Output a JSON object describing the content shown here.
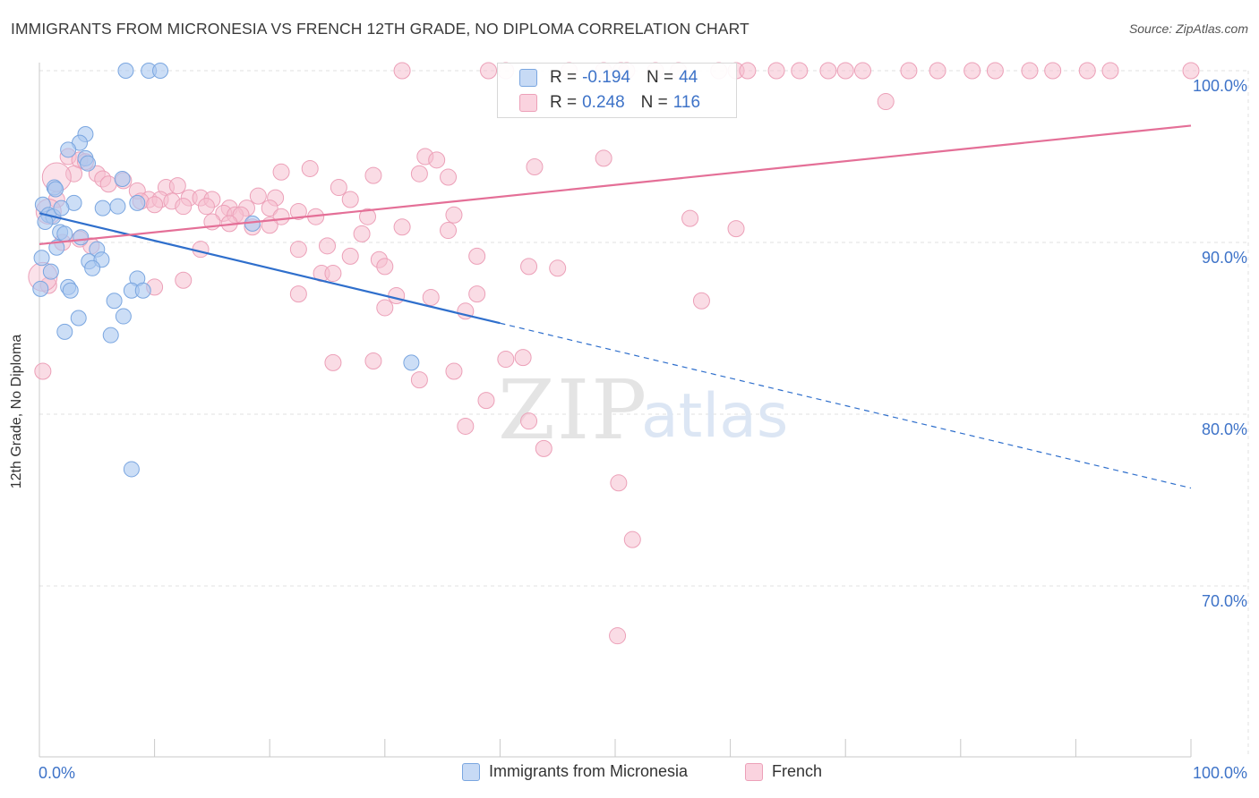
{
  "title": "IMMIGRANTS FROM MICRONESIA VS FRENCH 12TH GRADE, NO DIPLOMA CORRELATION CHART",
  "source": "Source: ZipAtlas.com",
  "watermark": {
    "zip": "ZIP",
    "atlas": "atlas"
  },
  "colors": {
    "blue_fill": "#aac8f0",
    "blue_stroke": "#7aa6e0",
    "blue_line": "#2f6fcc",
    "pink_fill": "#f6bfd0",
    "pink_stroke": "#eca0b8",
    "pink_line": "#e46f97",
    "axis_text": "#3e73c8",
    "grid": "#e0e0e0"
  },
  "legend": {
    "rows": [
      {
        "r_label": "R =",
        "r_value": "-0.194",
        "n_label": "N =",
        "n_value": "44"
      },
      {
        "r_label": "R =",
        "r_value": "0.248",
        "n_label": "N =",
        "n_value": "116"
      }
    ]
  },
  "chart_data": {
    "type": "scatter",
    "title": "IMMIGRANTS FROM MICRONESIA VS FRENCH 12TH GRADE, NO DIPLOMA CORRELATION CHART",
    "xlabel": "",
    "ylabel": "12th Grade, No Diploma",
    "xlim": [
      0,
      100
    ],
    "ylim": [
      60,
      100
    ],
    "x_tick_labels": [
      "0.0%",
      "100.0%"
    ],
    "y_ticks": [
      70,
      80,
      90,
      100
    ],
    "y_tick_labels": [
      "70.0%",
      "80.0%",
      "90.0%",
      "100.0%"
    ],
    "grid": true,
    "legend_position": "top-center",
    "series": [
      {
        "name": "Immigrants from Micronesia",
        "r": -0.194,
        "n": 44,
        "trend": {
          "x0": 0,
          "y0": 91.7,
          "x1": 40,
          "y1": 85.3,
          "dash_to_x": 100,
          "dash_to_y": 75.7
        },
        "points": [
          [
            7.5,
            100
          ],
          [
            9.5,
            100
          ],
          [
            10.5,
            100
          ],
          [
            4,
            96.3
          ],
          [
            3.5,
            95.8
          ],
          [
            2.5,
            95.4
          ],
          [
            4,
            94.9
          ],
          [
            4.2,
            94.6
          ],
          [
            7.2,
            93.7
          ],
          [
            1.3,
            93.2
          ],
          [
            1.4,
            93.1
          ],
          [
            0.3,
            92.2
          ],
          [
            3,
            92.3
          ],
          [
            5.5,
            92
          ],
          [
            6.8,
            92.1
          ],
          [
            8.5,
            92.3
          ],
          [
            0.8,
            91.6
          ],
          [
            1.2,
            91.5
          ],
          [
            1.9,
            92
          ],
          [
            0.5,
            91.2
          ],
          [
            1.8,
            90.6
          ],
          [
            2.2,
            90.5
          ],
          [
            3.6,
            90.3
          ],
          [
            1.5,
            89.7
          ],
          [
            5,
            89.6
          ],
          [
            18.5,
            91.1
          ],
          [
            0.2,
            89.1
          ],
          [
            4.3,
            88.9
          ],
          [
            5.4,
            89
          ],
          [
            4.6,
            88.5
          ],
          [
            8.5,
            87.9
          ],
          [
            2.5,
            87.4
          ],
          [
            2.7,
            87.2
          ],
          [
            8,
            87.2
          ],
          [
            9,
            87.2
          ],
          [
            6.5,
            86.6
          ],
          [
            7.3,
            85.7
          ],
          [
            3.4,
            85.6
          ],
          [
            2.2,
            84.8
          ],
          [
            6.2,
            84.6
          ],
          [
            32.3,
            83
          ],
          [
            8,
            76.8
          ],
          [
            0.1,
            87.3
          ],
          [
            1.0,
            88.3
          ]
        ]
      },
      {
        "name": "French",
        "r": 0.248,
        "n": 116,
        "trend": {
          "x0": 0,
          "y0": 89.9,
          "x1": 100,
          "y1": 96.8
        },
        "points": [
          [
            31.5,
            100
          ],
          [
            39,
            100
          ],
          [
            40.5,
            100
          ],
          [
            46,
            100
          ],
          [
            49,
            100
          ],
          [
            50.5,
            100
          ],
          [
            51,
            100
          ],
          [
            53.5,
            100
          ],
          [
            55.5,
            100
          ],
          [
            59,
            100
          ],
          [
            60.5,
            100
          ],
          [
            61.5,
            100
          ],
          [
            64,
            100
          ],
          [
            66,
            100
          ],
          [
            68.5,
            100
          ],
          [
            70,
            100
          ],
          [
            71.5,
            100
          ],
          [
            75.5,
            100
          ],
          [
            78,
            100
          ],
          [
            81,
            100
          ],
          [
            83,
            100
          ],
          [
            86,
            100
          ],
          [
            88,
            100
          ],
          [
            91,
            100
          ],
          [
            93,
            100
          ],
          [
            100,
            100
          ],
          [
            73.5,
            98.2
          ],
          [
            2.5,
            95
          ],
          [
            3.5,
            94.8
          ],
          [
            4,
            94.7
          ],
          [
            33.5,
            95
          ],
          [
            34.5,
            94.8
          ],
          [
            49,
            94.9
          ],
          [
            43,
            94.4
          ],
          [
            23.5,
            94.3
          ],
          [
            21,
            94.1
          ],
          [
            5,
            94
          ],
          [
            33,
            94
          ],
          [
            29,
            93.9
          ],
          [
            35.5,
            93.8
          ],
          [
            5.5,
            93.7
          ],
          [
            6,
            93.4
          ],
          [
            7.3,
            93.6
          ],
          [
            8.5,
            93
          ],
          [
            11,
            93.2
          ],
          [
            12,
            93.3
          ],
          [
            26,
            93.2
          ],
          [
            9.5,
            92.5
          ],
          [
            10.5,
            92.5
          ],
          [
            11.5,
            92.4
          ],
          [
            13,
            92.6
          ],
          [
            14,
            92.6
          ],
          [
            15,
            92.5
          ],
          [
            19,
            92.7
          ],
          [
            20.5,
            92.6
          ],
          [
            27,
            92.5
          ],
          [
            8.8,
            92.4
          ],
          [
            10,
            92.2
          ],
          [
            12.5,
            92.1
          ],
          [
            14.5,
            92.1
          ],
          [
            16.5,
            92
          ],
          [
            18,
            92
          ],
          [
            20,
            92
          ],
          [
            22.5,
            91.8
          ],
          [
            16,
            91.7
          ],
          [
            17,
            91.6
          ],
          [
            17.5,
            91.6
          ],
          [
            21,
            91.5
          ],
          [
            24,
            91.5
          ],
          [
            28.5,
            91.5
          ],
          [
            36,
            91.6
          ],
          [
            56.5,
            91.4
          ],
          [
            15,
            91.2
          ],
          [
            16.5,
            91.1
          ],
          [
            18.5,
            90.9
          ],
          [
            20,
            91
          ],
          [
            31.5,
            90.9
          ],
          [
            35.5,
            90.7
          ],
          [
            60.5,
            90.8
          ],
          [
            28,
            90.5
          ],
          [
            3.5,
            90.2
          ],
          [
            2,
            90
          ],
          [
            14,
            89.6
          ],
          [
            22.5,
            89.6
          ],
          [
            25,
            89.8
          ],
          [
            27,
            89.2
          ],
          [
            29.5,
            89
          ],
          [
            38,
            89.2
          ],
          [
            10,
            87.4
          ],
          [
            12.5,
            87.8
          ],
          [
            24.5,
            88.2
          ],
          [
            25.5,
            88.2
          ],
          [
            30,
            88.6
          ],
          [
            42.5,
            88.6
          ],
          [
            45,
            88.5
          ],
          [
            38,
            87
          ],
          [
            22.5,
            87
          ],
          [
            31,
            86.9
          ],
          [
            57.5,
            86.6
          ],
          [
            30,
            86.2
          ],
          [
            37,
            86
          ],
          [
            34,
            86.8
          ],
          [
            40.5,
            83.2
          ],
          [
            42,
            83.3
          ],
          [
            25.5,
            83
          ],
          [
            29,
            83.1
          ],
          [
            36,
            82.5
          ],
          [
            33,
            82
          ],
          [
            38.8,
            80.8
          ],
          [
            42.5,
            79.6
          ],
          [
            37,
            79.3
          ],
          [
            43.8,
            78
          ],
          [
            50.3,
            76
          ],
          [
            51.5,
            72.7
          ],
          [
            50.2,
            67.1
          ],
          [
            0.3,
            82.5
          ],
          [
            0.8,
            87.5
          ],
          [
            3,
            94
          ],
          [
            1.5,
            92.5
          ],
          [
            4.5,
            89.8
          ]
        ]
      }
    ]
  },
  "bottom_legend": [
    {
      "label": "Immigrants from Micronesia"
    },
    {
      "label": "French"
    }
  ]
}
